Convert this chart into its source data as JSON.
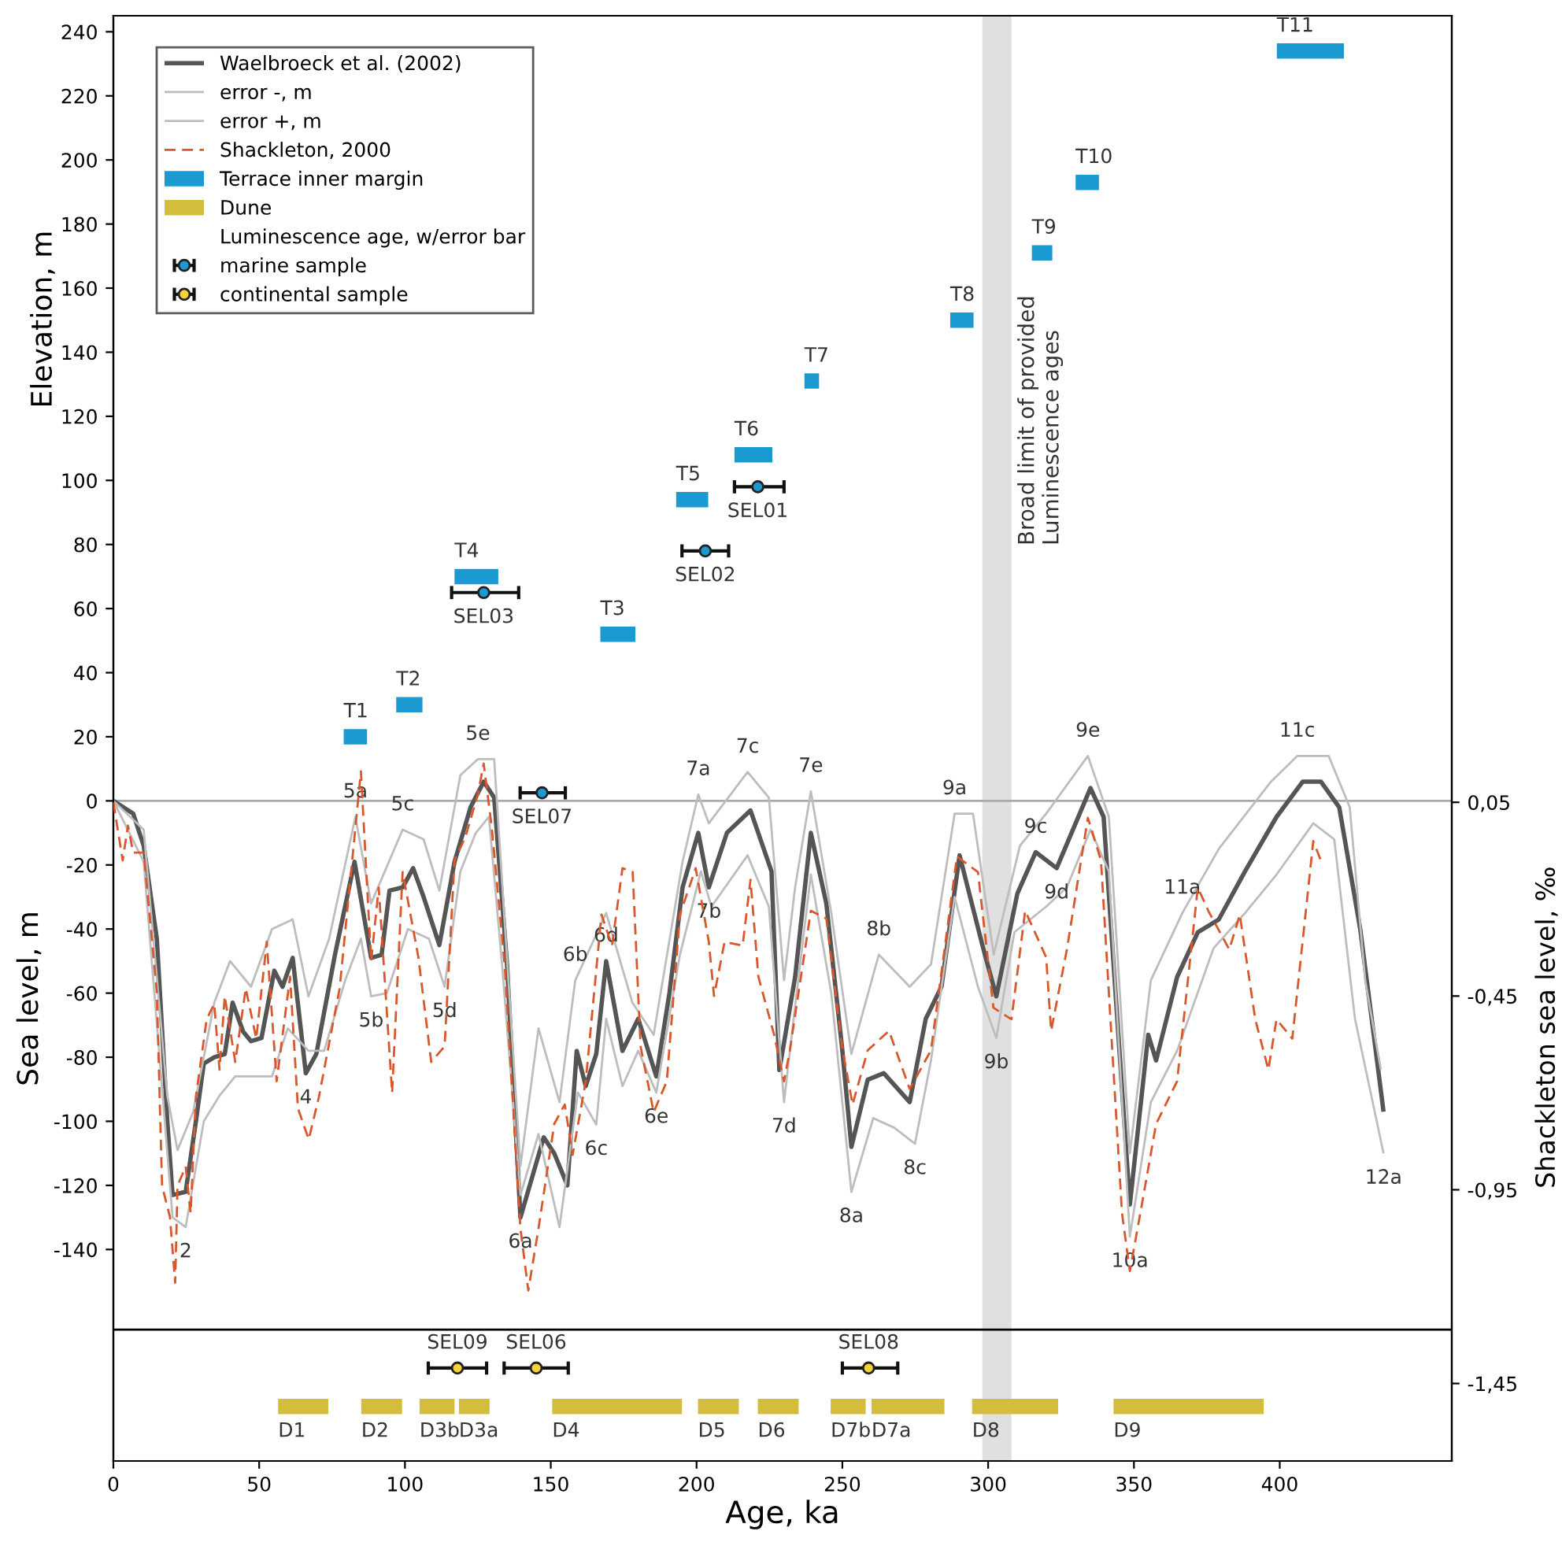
{
  "chart_data": {
    "type": "line",
    "xlabel": "Age, ka",
    "ylabel": "Sea level, m",
    "y2label": "Shackleton sea level, ‰",
    "legend_title": "Luminescence age, w/error bar",
    "legend": "top left",
    "xlim": [
      0,
      459
    ],
    "xticks": [
      0,
      50,
      100,
      150,
      200,
      250,
      300,
      350,
      400
    ],
    "ylim": [
      -206,
      245
    ],
    "yticks": [
      -140,
      -120,
      -100,
      -80,
      -60,
      -40,
      -20,
      0,
      20,
      40,
      60,
      80,
      100,
      120,
      140,
      160,
      180,
      200,
      220,
      240
    ],
    "y2lim": [
      -1.65,
      2.08
    ],
    "y2ticks": [
      {
        "value": 0.05,
        "label": "0,05"
      },
      {
        "value": -0.45,
        "label": "-0,45"
      },
      {
        "value": -0.95,
        "label": "-0,95"
      },
      {
        "value": -1.45,
        "label": "-1,45"
      }
    ],
    "ref_lines": [
      {
        "axis": "y",
        "value": 0,
        "color": "#aaaaaa"
      },
      {
        "axis": "y",
        "value": -165,
        "color": "#000000"
      }
    ],
    "bands": [
      {
        "axis": "x",
        "from": 298,
        "to": 308,
        "label": "Broad limit of provided\nLuminescence ages",
        "color": "#e0e0e0"
      }
    ],
    "annotations": [
      "Elevation, m",
      {
        "text": "5a",
        "x": 83,
        "y": -5
      },
      {
        "text": "5c",
        "x": 99.2,
        "y": -9
      },
      {
        "text": "5e",
        "x": 125,
        "y": 13
      },
      {
        "text": "7a",
        "x": 200.6,
        "y": 2
      },
      {
        "text": "7c",
        "x": 217.5,
        "y": 9
      },
      {
        "text": "7e",
        "x": 239.2,
        "y": 3
      },
      {
        "text": "9a",
        "x": 288.5,
        "y": -4
      },
      {
        "text": "9c",
        "x": 316.3,
        "y": -16
      },
      {
        "text": "9e",
        "x": 334.2,
        "y": 14
      },
      {
        "text": "11c",
        "x": 406,
        "y": 14
      },
      {
        "text": "11a",
        "x": 366.6,
        "y": -35
      },
      {
        "text": "5b",
        "x": 88.4,
        "y": -61
      },
      {
        "text": "5d",
        "x": 113.6,
        "y": -58
      },
      {
        "text": "6d",
        "x": 169,
        "y": -50
      },
      {
        "text": "6b",
        "x": 158.4,
        "y": -56
      },
      {
        "text": "6c",
        "x": 165.6,
        "y": -101
      },
      {
        "text": "6e",
        "x": 186.2,
        "y": -91
      },
      {
        "text": "7b",
        "x": 204.2,
        "y": -27
      },
      {
        "text": "7d",
        "x": 230,
        "y": -94
      },
      {
        "text": "8b",
        "x": 262.5,
        "y": -48
      },
      {
        "text": "8a",
        "x": 253.1,
        "y": -122
      },
      {
        "text": "8c",
        "x": 274.9,
        "y": -107
      },
      {
        "text": "9b",
        "x": 302.8,
        "y": -74
      },
      {
        "text": "9d",
        "x": 323.5,
        "y": -21
      },
      {
        "text": "10a",
        "x": 348.6,
        "y": -136
      },
      {
        "text": "12a",
        "x": 435.6,
        "y": -110
      },
      {
        "text": "2",
        "x": 24.8,
        "y": -133
      },
      {
        "text": "4",
        "x": 66,
        "y": -85
      },
      {
        "text": "6a",
        "x": 139.6,
        "y": -130
      },
      {
        "text": "T1",
        "x": 79,
        "y": 20
      },
      {
        "text": "T2",
        "x": 97,
        "y": 30
      },
      {
        "text": "T4",
        "x": 117,
        "y": 70
      },
      {
        "text": "T3",
        "x": 167,
        "y": 52
      },
      {
        "text": "T5",
        "x": 193,
        "y": 94
      },
      {
        "text": "T6",
        "x": 213,
        "y": 108
      },
      {
        "text": "T7",
        "x": 237,
        "y": 131
      },
      {
        "text": "T8",
        "x": 287,
        "y": 150
      },
      {
        "text": "T9",
        "x": 315,
        "y": 171
      },
      {
        "text": "T10",
        "x": 330,
        "y": 193
      },
      {
        "text": "T11",
        "x": 399,
        "y": 234
      },
      {
        "text": "SEL03",
        "x": 127,
        "y": 65
      },
      {
        "text": "SEL07",
        "x": 147,
        "y": 2.5
      },
      {
        "text": "SEL02",
        "x": 203,
        "y": 78
      },
      {
        "text": "SEL01",
        "x": 221,
        "y": 98
      },
      {
        "text": "SEL09",
        "x": 118,
        "y": -177
      },
      {
        "text": "SEL06",
        "x": 145,
        "y": -177
      },
      {
        "text": "SEL08",
        "x": 259,
        "y": -177
      },
      {
        "text": "D1",
        "x": 56.5,
        "y": -189
      },
      {
        "text": "D2",
        "x": 85,
        "y": -189
      },
      {
        "text": "D3b",
        "x": 105,
        "y": -189
      },
      {
        "text": "D3a",
        "x": 118.5,
        "y": -189
      },
      {
        "text": "D4",
        "x": 150.5,
        "y": -189
      },
      {
        "text": "D5",
        "x": 200.5,
        "y": -189
      },
      {
        "text": "D6",
        "x": 221,
        "y": -189
      },
      {
        "text": "D7b",
        "x": 246,
        "y": -189
      },
      {
        "text": "D7a",
        "x": 260,
        "y": -189
      },
      {
        "text": "D8",
        "x": 294.5,
        "y": -189
      },
      {
        "text": "D9",
        "x": 343,
        "y": -189
      }
    ],
    "series": [
      {
        "name": "Waelbroeck et al. (2002)",
        "color": "#555555",
        "x": [
          0,
          6.8,
          10.4,
          14.9,
          18.5,
          20.3,
          24.8,
          28.3,
          31,
          34.6,
          38.2,
          40.9,
          44.5,
          47.2,
          50.8,
          55.2,
          58,
          61.5,
          66,
          69.6,
          76,
          82.7,
          88.4,
          92,
          94.7,
          99.2,
          102.8,
          106.4,
          111.8,
          117,
          122.5,
          127,
          130.6,
          135,
          139.6,
          147.6,
          151.2,
          155.7,
          158.9,
          162,
          165.6,
          169,
          174.6,
          180,
          186.2,
          190.7,
          195.2,
          200.6,
          204.2,
          210.4,
          218.5,
          225.7,
          228.4,
          233.8,
          239.2,
          244.5,
          249.9,
          253.1,
          258.7,
          264.2,
          273.1,
          278.6,
          284,
          290.2,
          298.3,
          302.8,
          310,
          316.3,
          323.5,
          335.1,
          339.6,
          348.6,
          354.9,
          357.6,
          364.8,
          371.9,
          379.1,
          388.1,
          398.9,
          407.9,
          414.1,
          420.4,
          427.6,
          435.6
        ],
        "values": [
          0,
          -4,
          -14,
          -43,
          -100,
          -123,
          -122,
          -100,
          -82,
          -80,
          -79,
          -63,
          -72,
          -75,
          -74,
          -53,
          -58,
          -49,
          -85,
          -79,
          -48,
          -19,
          -49,
          -48,
          -28,
          -27,
          -21,
          -30,
          -45,
          -19,
          -2,
          6,
          1,
          -51,
          -130,
          -105,
          -110,
          -120,
          -78,
          -89,
          -79,
          -50,
          -78,
          -68,
          -86,
          -60,
          -27,
          -10,
          -27,
          -10,
          -3,
          -22,
          -84,
          -55,
          -10,
          -32,
          -77,
          -108,
          -87,
          -85,
          -94,
          -68,
          -58,
          -17,
          -46,
          -61,
          -29,
          -16,
          -21,
          4,
          -5,
          -126,
          -73,
          -81,
          -55,
          -41,
          -37,
          -22,
          -5,
          6,
          6,
          -2,
          -40,
          -97
        ]
      },
      {
        "name": "error -, m",
        "color": "#bdbdbd",
        "x": [
          0,
          10.4,
          20.3,
          24.8,
          31,
          36.4,
          41.8,
          54.4,
          59.8,
          66.9,
          72.3,
          79.5,
          84.9,
          88.4,
          93.8,
          101,
          108.2,
          113.6,
          119,
          124.3,
          128.8,
          133.3,
          139.6,
          145.8,
          153,
          159.3,
          165.6,
          169,
          174.6,
          180,
          186.2,
          194.3,
          201.5,
          205.1,
          217.5,
          224.8,
          230,
          233.8,
          239.2,
          246.2,
          253.1,
          260.6,
          267.8,
          274.9,
          280.4,
          288.5,
          296.5,
          302.8,
          309,
          319.9,
          327,
          335.1,
          341.4,
          348.6,
          355.8,
          364.8,
          377.3,
          388.1,
          398.9,
          411.5,
          418.7,
          425.8,
          435.6
        ],
        "values": [
          0,
          -19,
          -130,
          -133,
          -100,
          -92,
          -86,
          -86,
          -71,
          -78,
          -78,
          -56,
          -43,
          -61,
          -60,
          -40,
          -43,
          -58,
          -22,
          -10,
          -5,
          -51,
          -123,
          -104,
          -133,
          -91,
          -101,
          -68,
          -89,
          -78,
          -91,
          -48,
          -22,
          -33,
          -17,
          -33,
          -94,
          -64,
          -23,
          -60,
          -122,
          -99,
          -102,
          -107,
          -81,
          -30,
          -58,
          -74,
          -41,
          -33,
          -27,
          -9,
          -22,
          -136,
          -94,
          -78,
          -46,
          -35,
          -23,
          -7,
          -12,
          -68,
          -110
        ]
      },
      {
        "name": "error +, m",
        "color": "#bdbdbd",
        "x": [
          0,
          10.4,
          18.5,
          22,
          27.4,
          34.6,
          40,
          47.2,
          54.4,
          61.5,
          66.9,
          74,
          83,
          88.4,
          99.2,
          106.4,
          111.8,
          119,
          125,
          130.6,
          139.6,
          145.8,
          153,
          158.4,
          169,
          178,
          185.3,
          195.2,
          200.6,
          204.2,
          217.5,
          224.8,
          230,
          233.8,
          239.2,
          246.2,
          253.1,
          262.5,
          273.1,
          280.4,
          288.5,
          294.8,
          301.9,
          310.9,
          319.9,
          334.2,
          341.4,
          348.6,
          355.8,
          366.6,
          379.1,
          397,
          406,
          416.8,
          424,
          429.3,
          434.7
        ],
        "values": [
          0,
          -9,
          -92,
          -109,
          -97,
          -63,
          -50,
          -58,
          -40,
          -37,
          -61,
          -43,
          -5,
          -32,
          -9,
          -12,
          -28,
          8,
          13,
          13,
          -114,
          -71,
          -94,
          -56,
          -35,
          -63,
          -73,
          -19,
          2,
          -7,
          9,
          1,
          -56,
          -27,
          3,
          -35,
          -79,
          -48,
          -58,
          -51,
          -4,
          -4,
          -48,
          -14,
          -4,
          14,
          -5,
          -110,
          -56,
          -35,
          -15,
          6,
          14,
          14,
          -2,
          -56,
          -84
        ]
      },
      {
        "name": "Shackleton, 2000",
        "color": "#d9572b",
        "axis": "y2",
        "line_style": "dashed",
        "x": [
          0,
          3.2,
          5,
          6.8,
          10.4,
          14.9,
          16.7,
          19.4,
          21.2,
          22,
          24.8,
          26.5,
          28.3,
          32,
          34.6,
          36.4,
          38.2,
          41.8,
          45.4,
          49,
          52.6,
          56,
          60.6,
          63.3,
          67,
          70.5,
          77.6,
          84.9,
          88.4,
          91,
          95.6,
          99.2,
          104.6,
          109,
          113.6,
          117,
          120.7,
          125,
          127,
          129.7,
          134.2,
          139.6,
          142.3,
          145.8,
          151.2,
          154.8,
          157.5,
          162,
          167.4,
          171,
          174.6,
          178.1,
          180.8,
          185.3,
          189.8,
          194.3,
          199.7,
          204.2,
          206,
          209.6,
          215.8,
          218.5,
          221.2,
          226.6,
          230,
          232,
          239.2,
          244.5,
          249.9,
          253.5,
          258.7,
          266,
          273.1,
          280.4,
          289.3,
          296.5,
          301.8,
          308,
          312.7,
          319.9,
          321.6,
          327,
          334.2,
          338.7,
          345.9,
          348.6,
          352.2,
          357.6,
          364.8,
          371.9,
          375.5,
          382.7,
          386.3,
          391.6,
          396.1,
          398.9,
          404.3,
          411.5,
          414.1
        ],
        "values": [
          0.05,
          -0.1,
          -0.01,
          -0.08,
          -0.08,
          -0.44,
          -0.94,
          -1.02,
          -1.19,
          -0.94,
          -0.89,
          -1.01,
          -0.71,
          -0.51,
          -0.47,
          -0.64,
          -0.45,
          -0.62,
          -0.43,
          -0.56,
          -0.31,
          -0.67,
          -0.4,
          -0.74,
          -0.82,
          -0.71,
          -0.43,
          0.13,
          -0.36,
          -0.17,
          -0.7,
          -0.13,
          -0.35,
          -0.62,
          -0.58,
          -0.1,
          -0.04,
          0.07,
          0.15,
          -0.01,
          -0.37,
          -1.05,
          -1.21,
          -1.05,
          -0.78,
          -0.73,
          -0.86,
          -0.67,
          -0.24,
          -0.32,
          -0.12,
          -0.13,
          -0.58,
          -0.75,
          -0.67,
          -0.24,
          -0.12,
          -0.31,
          -0.45,
          -0.31,
          -0.32,
          -0.15,
          -0.4,
          -0.55,
          -0.67,
          -0.59,
          -0.23,
          -0.25,
          -0.58,
          -0.73,
          -0.59,
          -0.54,
          -0.69,
          -0.59,
          -0.09,
          -0.13,
          -0.48,
          -0.51,
          -0.23,
          -0.35,
          -0.54,
          -0.33,
          0.01,
          -0.1,
          -1.01,
          -1.16,
          -1.01,
          -0.78,
          -0.67,
          -0.17,
          -0.23,
          -0.33,
          -0.24,
          -0.51,
          -0.64,
          -0.51,
          -0.56,
          -0.05,
          -0.1
        ]
      },
      {
        "name": "Terrace inner margin",
        "color": "#1a9ad0",
        "x": [
          79,
          87,
          null,
          97,
          106,
          null,
          117,
          132,
          null,
          167,
          179,
          null,
          193,
          204,
          null,
          213,
          226,
          null,
          237,
          242,
          null,
          287,
          295,
          null,
          315,
          322,
          null,
          330,
          338,
          null,
          399,
          422
        ],
        "values": [
          20,
          20,
          null,
          30,
          30,
          null,
          70,
          70,
          null,
          52,
          52,
          null,
          94,
          94,
          null,
          108,
          108,
          null,
          131,
          131,
          null,
          150,
          150,
          null,
          171,
          171,
          null,
          193,
          193,
          null,
          234,
          234
        ]
      },
      {
        "name": "Dune",
        "color": "#d4bc3c",
        "x": [
          56.5,
          73.7,
          null,
          85,
          99,
          null,
          105,
          117,
          null,
          118.5,
          129,
          null,
          150.5,
          195,
          null,
          200.5,
          214.5,
          null,
          221,
          235,
          null,
          246,
          258,
          null,
          260,
          285,
          null,
          294.5,
          324,
          null,
          343,
          394.5
        ],
        "values": [
          -189,
          -189,
          null,
          -189,
          -189,
          null,
          -189,
          -189,
          null,
          -189,
          -189,
          null,
          -189,
          -189,
          null,
          -189,
          -189,
          null,
          -189,
          -189,
          null,
          -189,
          -189,
          null,
          -189,
          -189,
          null,
          -189,
          -189,
          null,
          -189,
          -189
        ]
      },
      {
        "type": "scatter",
        "name": "marine sample",
        "color": "#1a9ad0",
        "marker": "circle",
        "x": [
          127,
          147,
          203,
          221
        ],
        "values": [
          65,
          2.5,
          78,
          98
        ],
        "xerrors": [
          [
            116,
            139
          ],
          [
            139.5,
            155
          ],
          [
            195,
            211
          ],
          [
            213,
            230
          ]
        ]
      },
      {
        "type": "scatter",
        "name": "continental sample",
        "color": "#f2d33a",
        "marker": "circle",
        "x": [
          118,
          145,
          259
        ],
        "values": [
          -177,
          -177,
          -177
        ],
        "xerrors": [
          [
            108,
            128
          ],
          [
            134,
            156
          ],
          [
            250,
            269
          ]
        ]
      }
    ]
  }
}
